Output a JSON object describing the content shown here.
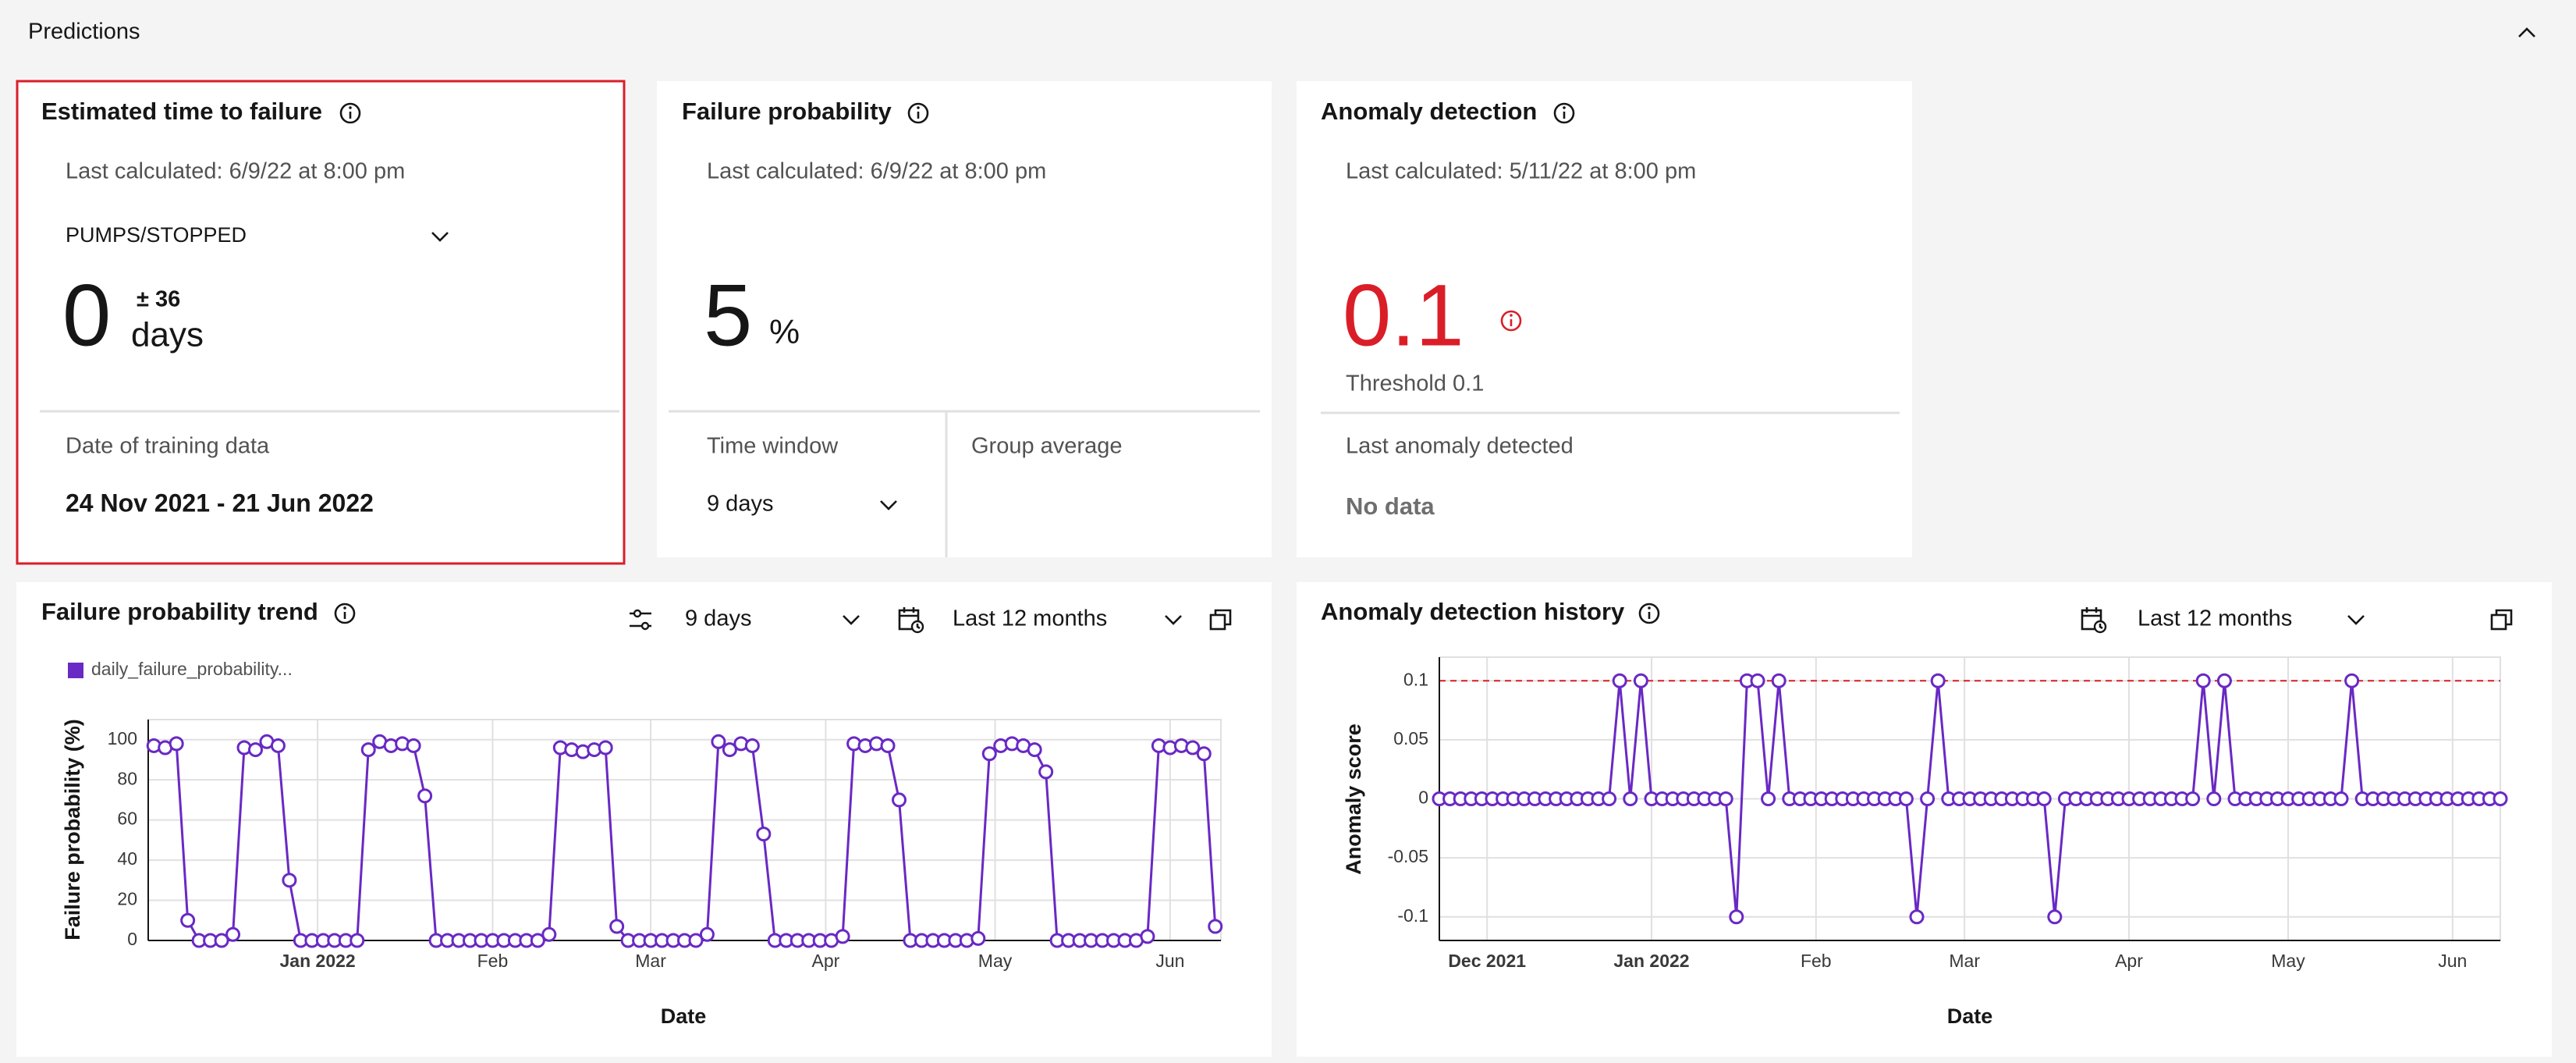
{
  "section_title": "Predictions",
  "cards": [
    {
      "title": "Estimated time to failure",
      "last_calculated": "Last calculated: 6/9/22 at 8:00 pm",
      "dropdown": "PUMPS/STOPPED",
      "value": "0",
      "margin": "± 36",
      "unit": "days",
      "footer_label": "Date of training data",
      "footer_value": "24 Nov 2021 - 21 Jun 2022"
    },
    {
      "title": "Failure probability",
      "last_calculated": "Last calculated: 6/9/22 at 8:00 pm",
      "value": "5",
      "unit": "%",
      "time_window_label": "Time window",
      "time_window": "9 days",
      "group_average_label": "Group average"
    },
    {
      "title": "Anomaly detection",
      "last_calculated": "Last calculated: 5/11/22 at 8:00 pm",
      "value": "0.1",
      "threshold_label": "Threshold 0.1",
      "footer_label": "Last anomaly detected",
      "footer_value": "No data"
    }
  ],
  "chart_controls": [
    {
      "window": "9 days",
      "range": "Last 12 months"
    },
    {
      "range": "Last 12 months"
    }
  ],
  "chart_data": [
    {
      "type": "line",
      "title": "Failure probability trend",
      "x_label": "Date",
      "y_label": "Failure probability (%)",
      "x": [
        -29,
        -27,
        -25,
        -23,
        -21,
        -19,
        -17,
        -15,
        -13,
        -11,
        -9,
        -7,
        -5,
        -3,
        -1,
        1,
        3,
        5,
        7,
        9,
        11,
        13,
        15,
        17,
        19,
        21,
        23,
        25,
        27,
        29,
        31,
        33,
        35,
        37,
        39,
        41,
        43,
        45,
        47,
        49,
        51,
        53,
        55,
        57,
        59,
        61,
        63,
        65,
        67,
        69,
        71,
        73,
        75,
        77,
        79,
        81,
        83,
        85,
        87,
        89,
        91,
        93,
        95,
        97,
        99,
        101,
        103,
        105,
        107,
        109,
        111,
        113,
        115,
        117,
        119,
        121,
        123,
        125,
        127,
        129,
        131,
        133,
        135,
        137,
        139,
        141,
        143,
        145,
        147,
        149,
        151,
        153,
        155,
        157,
        159
      ],
      "series": [
        {
          "name": "daily_failure_probability...",
          "color": "#6929c4",
          "values": [
            97,
            96,
            98,
            10,
            0,
            0,
            0,
            3,
            96,
            95,
            99,
            97,
            30,
            0,
            0,
            0,
            0,
            0,
            0,
            95,
            99,
            97,
            98,
            97,
            72,
            0,
            0,
            0,
            0,
            0,
            0,
            0,
            0,
            0,
            0,
            3,
            96,
            95,
            94,
            95,
            96,
            7,
            0,
            0,
            0,
            0,
            0,
            0,
            0,
            3,
            99,
            95,
            98,
            97,
            53,
            0,
            0,
            0,
            0,
            0,
            0,
            2,
            98,
            97,
            98,
            97,
            70,
            0,
            0,
            0,
            0,
            0,
            0,
            1,
            93,
            97,
            98,
            97,
            95,
            84,
            0,
            0,
            0,
            0,
            0,
            0,
            0,
            0,
            2,
            97,
            96,
            97,
            96,
            93,
            7
          ]
        }
      ],
      "xlim": [
        -30,
        160
      ],
      "ylim": [
        0,
        110
      ],
      "xticks": [
        {
          "value": 0,
          "label": "Jan 2022"
        },
        {
          "value": 31,
          "label": "Feb"
        },
        {
          "value": 59,
          "label": "Mar"
        },
        {
          "value": 90,
          "label": "Apr"
        },
        {
          "value": 120,
          "label": "May"
        },
        {
          "value": 151,
          "label": "Jun"
        }
      ],
      "yticks": [
        0,
        20,
        40,
        60,
        80,
        100
      ],
      "grid": true
    },
    {
      "type": "line",
      "title": "Anomaly detection history",
      "x_label": "Date",
      "y_label": "Anomaly score",
      "x": [
        -40,
        -38,
        -36,
        -34,
        -32,
        -30,
        -28,
        -26,
        -24,
        -22,
        -20,
        -18,
        -16,
        -14,
        -12,
        -10,
        -8,
        -6,
        -4,
        -2,
        0,
        2,
        4,
        6,
        8,
        10,
        12,
        14,
        16,
        18,
        20,
        22,
        24,
        26,
        28,
        30,
        32,
        34,
        36,
        38,
        40,
        42,
        44,
        46,
        48,
        50,
        52,
        54,
        56,
        58,
        60,
        62,
        64,
        66,
        68,
        70,
        72,
        74,
        76,
        78,
        80,
        82,
        84,
        86,
        88,
        90,
        92,
        94,
        96,
        98,
        100,
        102,
        104,
        106,
        108,
        110,
        112,
        114,
        116,
        118,
        120,
        122,
        124,
        126,
        128,
        130,
        132,
        134,
        136,
        138,
        140,
        142,
        144,
        146,
        148,
        150,
        152,
        154,
        156,
        158,
        160
      ],
      "series": [
        {
          "color": "#6929c4",
          "values": [
            0,
            0,
            0,
            0,
            0,
            0,
            0,
            0,
            0,
            0,
            0,
            0,
            0,
            0,
            0,
            0,
            0,
            0.1,
            0,
            0.1,
            0,
            0,
            0,
            0,
            0,
            0,
            0,
            0,
            -0.1,
            0.1,
            0.1,
            0,
            0.1,
            0,
            0,
            0,
            0,
            0,
            0,
            0,
            0,
            0,
            0,
            0,
            0,
            -0.1,
            0,
            0.1,
            0,
            0,
            0,
            0,
            0,
            0,
            0,
            0,
            0,
            0,
            -0.1,
            0,
            0,
            0,
            0,
            0,
            0,
            0,
            0,
            0,
            0,
            0,
            0,
            0,
            0.1,
            0,
            0.1,
            0,
            0,
            0,
            0,
            0,
            0,
            0,
            0,
            0,
            0,
            0,
            0.1,
            0,
            0,
            0,
            0,
            0,
            0,
            0,
            0,
            0,
            0,
            0,
            0,
            0,
            0
          ]
        }
      ],
      "threshold": {
        "value": 0.1,
        "color": "#da1e28"
      },
      "xlim": [
        -40,
        160
      ],
      "ylim": [
        -0.12,
        0.12
      ],
      "xticks": [
        {
          "value": -31,
          "label": "Dec 2021"
        },
        {
          "value": 0,
          "label": "Jan 2022"
        },
        {
          "value": 31,
          "label": "Feb"
        },
        {
          "value": 59,
          "label": "Mar"
        },
        {
          "value": 90,
          "label": "Apr"
        },
        {
          "value": 120,
          "label": "May"
        },
        {
          "value": 151,
          "label": "Jun"
        }
      ],
      "yticks": [
        0.1,
        0.05,
        0,
        -0.05,
        -0.1
      ],
      "grid": true
    }
  ]
}
